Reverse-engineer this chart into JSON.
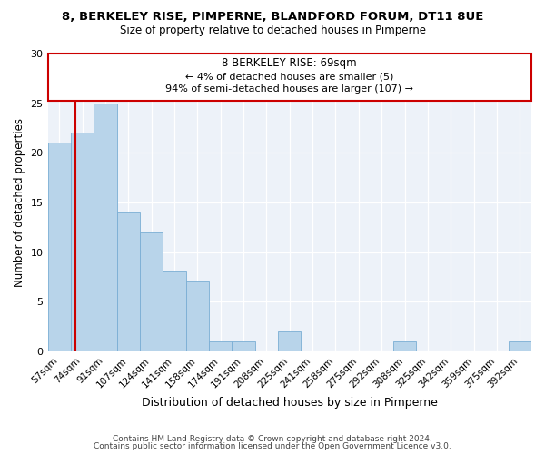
{
  "title": "8, BERKELEY RISE, PIMPERNE, BLANDFORD FORUM, DT11 8UE",
  "subtitle": "Size of property relative to detached houses in Pimperne",
  "xlabel": "Distribution of detached houses by size in Pimperne",
  "ylabel": "Number of detached properties",
  "bar_color": "#b8d4ea",
  "bar_edge_color": "#7aaed4",
  "marker_color": "#cc0000",
  "categories": [
    "57sqm",
    "74sqm",
    "91sqm",
    "107sqm",
    "124sqm",
    "141sqm",
    "158sqm",
    "174sqm",
    "191sqm",
    "208sqm",
    "225sqm",
    "241sqm",
    "258sqm",
    "275sqm",
    "292sqm",
    "308sqm",
    "325sqm",
    "342sqm",
    "359sqm",
    "375sqm",
    "392sqm"
  ],
  "values": [
    21,
    22,
    25,
    14,
    12,
    8,
    7,
    1,
    1,
    0,
    2,
    0,
    0,
    0,
    0,
    1,
    0,
    0,
    0,
    0,
    1
  ],
  "marker_label": "8 BERKELEY RISE: 69sqm",
  "annotation_line1": "← 4% of detached houses are smaller (5)",
  "annotation_line2": "94% of semi-detached houses are larger (107) →",
  "ylim": [
    0,
    30
  ],
  "yticks": [
    0,
    5,
    10,
    15,
    20,
    25,
    30
  ],
  "footer_line1": "Contains HM Land Registry data © Crown copyright and database right 2024.",
  "footer_line2": "Contains public sector information licensed under the Open Government Licence v3.0.",
  "background_color": "#edf2f9"
}
